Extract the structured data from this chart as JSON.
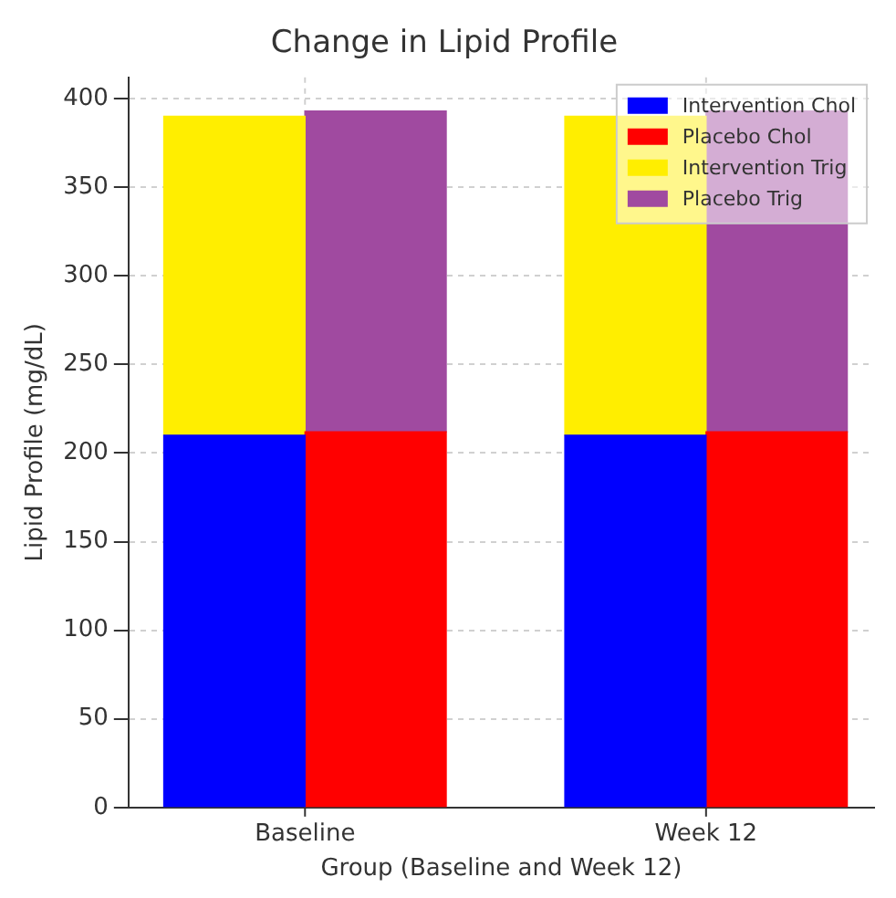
{
  "chart_data": {
    "type": "bar",
    "title": "Change in Lipid Profile",
    "xlabel": "Group (Baseline and Week 12)",
    "ylabel": "Lipid Profile (mg/dL)",
    "stacked": true,
    "categories": [
      null,
      null,
      null,
      null
    ],
    "series": [
      {
        "name": "Intervention Chol",
        "color": "#0000ff",
        "values": [
          210,
          null,
          210,
          null
        ]
      },
      {
        "name": "Placebo Chol",
        "color": "#ff0000",
        "values": [
          null,
          212,
          null,
          212
        ]
      },
      {
        "name": "Intervention Trig",
        "color": "#ffee00",
        "values": [
          180,
          null,
          180,
          null
        ]
      },
      {
        "name": "Placebo Trig",
        "color": "#a04aa0",
        "values": [
          null,
          181,
          null,
          181
        ]
      }
    ],
    "annotations": [
      "Baseline",
      "Week 12"
    ],
    "ylim": [
      0,
      412
    ],
    "yticks": [
      0,
      50,
      100,
      150,
      200,
      250,
      300,
      350,
      400
    ],
    "grid": true,
    "legend": "top right"
  }
}
